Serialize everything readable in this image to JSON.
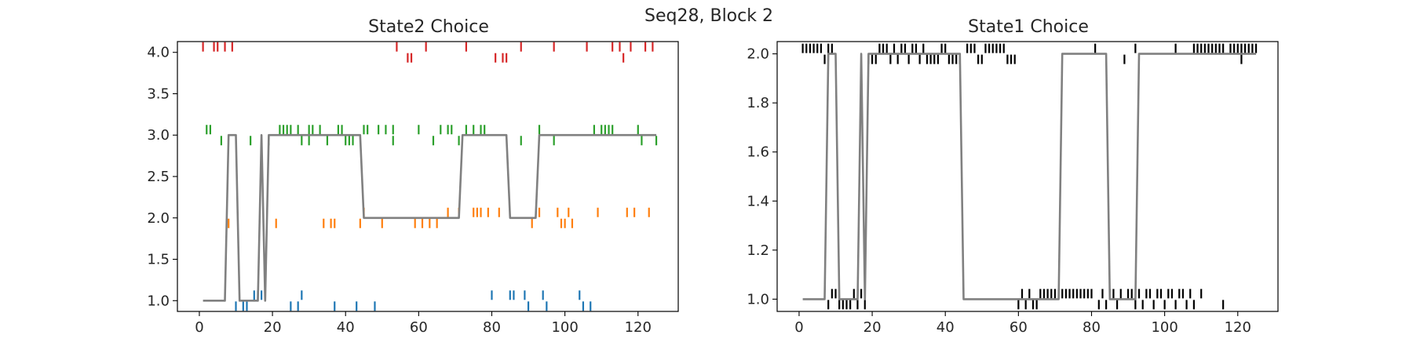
{
  "suptitle": "Seq28, Block 2",
  "chart_data": [
    {
      "type": "line",
      "title": "State2 Choice",
      "xlim": [
        -6,
        131
      ],
      "ylim": [
        0.87,
        4.13
      ],
      "xticks": [
        0,
        20,
        40,
        60,
        80,
        100,
        120
      ],
      "yticks": [
        1.0,
        1.5,
        2.0,
        2.5,
        3.0,
        3.5,
        4.0
      ],
      "ytick_labels": [
        "1.0",
        "1.5",
        "2.0",
        "2.5",
        "3.0",
        "3.5",
        "4.0"
      ],
      "line": {
        "color": "#808080",
        "x": [
          1,
          7,
          8,
          9,
          10,
          11,
          15,
          16,
          17,
          18,
          19,
          20,
          44,
          45,
          71,
          72,
          84,
          85,
          92,
          93,
          125
        ],
        "y": [
          1,
          1,
          3,
          3,
          3,
          1,
          1,
          1,
          3,
          1,
          3,
          3,
          3,
          2,
          2,
          3,
          3,
          2,
          2,
          3,
          3
        ]
      },
      "tick_series": [
        {
          "level": 1,
          "color": "#1f77b4",
          "above": [
            15,
            16,
            17,
            28,
            80,
            85,
            86,
            89,
            94,
            104
          ],
          "below": [
            10,
            12,
            13,
            25,
            27,
            37,
            43,
            48,
            90,
            95,
            105,
            107
          ]
        },
        {
          "level": 2,
          "color": "#ff7f0e",
          "above": [
            45,
            68,
            71,
            75,
            76,
            77,
            79,
            82,
            93,
            98,
            101,
            109,
            117,
            119,
            123
          ],
          "below": [
            8,
            21,
            34,
            36,
            37,
            44,
            50,
            59,
            61,
            63,
            65,
            91,
            99,
            100,
            102
          ]
        },
        {
          "level": 3,
          "color": "#2ca02c",
          "above": [
            2,
            3,
            22,
            23,
            24,
            25,
            27,
            30,
            31,
            33,
            38,
            39,
            45,
            46,
            49,
            51,
            53,
            60,
            66,
            68,
            69,
            73,
            75,
            77,
            78,
            93,
            108,
            110,
            111,
            112,
            113,
            120
          ],
          "below": [
            6,
            14,
            19,
            28,
            30,
            35,
            40,
            41,
            42,
            53,
            64,
            71,
            88,
            97,
            121,
            125
          ]
        },
        {
          "level": 4,
          "color": "#d62728",
          "above": [
            1,
            4,
            5,
            7,
            9,
            54,
            62,
            73,
            88,
            97,
            106,
            113,
            115,
            118,
            122,
            124
          ],
          "below": [
            57,
            58,
            81,
            83,
            84,
            116
          ]
        }
      ]
    },
    {
      "type": "line",
      "title": "State1 Choice",
      "xlim": [
        -6,
        131
      ],
      "ylim": [
        0.95,
        2.05
      ],
      "xticks": [
        0,
        20,
        40,
        60,
        80,
        100,
        120
      ],
      "yticks": [
        1.0,
        1.2,
        1.4,
        1.6,
        1.8,
        2.0
      ],
      "ytick_labels": [
        "1.0",
        "1.2",
        "1.4",
        "1.6",
        "1.8",
        "2.0"
      ],
      "line": {
        "color": "#808080",
        "x": [
          1,
          7,
          8,
          10,
          11,
          16,
          17,
          18,
          19,
          44,
          45,
          71,
          72,
          84,
          85,
          92,
          93,
          125
        ],
        "y": [
          1,
          1,
          2,
          2,
          1,
          1,
          2,
          1,
          2,
          2,
          1,
          1,
          2,
          2,
          1,
          1,
          2,
          2
        ]
      },
      "tick_series": [
        {
          "level": 2,
          "color": "#000000",
          "above": [
            1,
            2,
            3,
            4,
            5,
            6,
            8,
            9,
            22,
            23,
            24,
            26,
            28,
            29,
            31,
            32,
            34,
            39,
            40,
            46,
            47,
            48,
            51,
            52,
            53,
            54,
            55,
            56,
            81,
            92,
            103,
            108,
            109,
            110,
            111,
            112,
            113,
            114,
            115,
            116,
            118,
            119,
            120,
            121,
            122,
            123,
            124,
            125
          ],
          "below": [
            7,
            19,
            20,
            21,
            25,
            27,
            30,
            33,
            35,
            36,
            37,
            38,
            41,
            42,
            43,
            44,
            49,
            50,
            57,
            58,
            59,
            89,
            121
          ]
        },
        {
          "level": 1,
          "color": "#000000",
          "above": [
            9,
            10,
            15,
            17,
            61,
            63,
            66,
            67,
            68,
            69,
            70,
            71,
            72,
            73,
            74,
            75,
            76,
            77,
            78,
            79,
            80,
            83,
            85,
            86,
            88,
            90,
            91,
            93,
            95,
            96,
            98,
            99,
            101,
            102,
            104,
            105,
            107,
            110
          ],
          "below": [
            8,
            11,
            12,
            13,
            14,
            16,
            18,
            60,
            62,
            64,
            65,
            82,
            84,
            87,
            92,
            94,
            97,
            100,
            103,
            106,
            108,
            116
          ]
        }
      ]
    }
  ]
}
